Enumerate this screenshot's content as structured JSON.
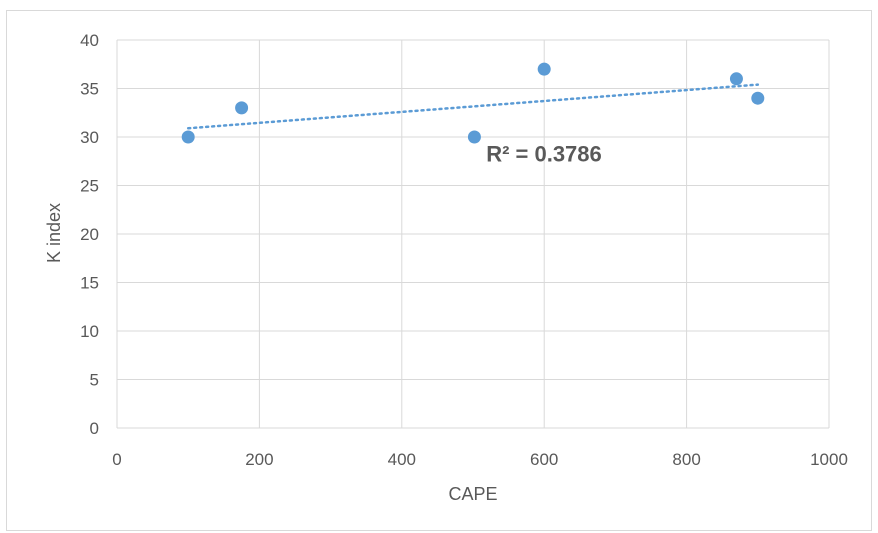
{
  "chart_data": {
    "type": "scatter",
    "title": "",
    "xlabel": "CAPE",
    "ylabel": "K index",
    "xlim": [
      0,
      1000
    ],
    "ylim": [
      0,
      40
    ],
    "x_ticks": [
      0,
      200,
      400,
      600,
      800,
      1000
    ],
    "y_ticks": [
      0,
      5,
      10,
      15,
      20,
      25,
      30,
      35,
      40
    ],
    "grid": true,
    "legend": "none",
    "series": [
      {
        "color": "#5b9bd5",
        "points": [
          {
            "x": 100,
            "y": 30
          },
          {
            "x": 175,
            "y": 33
          },
          {
            "x": 502,
            "y": 30
          },
          {
            "x": 600,
            "y": 37
          },
          {
            "x": 870,
            "y": 36
          },
          {
            "x": 900,
            "y": 34
          }
        ]
      }
    ],
    "trendline": {
      "type": "linear",
      "style": "dotted",
      "color": "#5b9bd5",
      "from": {
        "x": 100,
        "y": 30.9
      },
      "to": {
        "x": 900,
        "y": 35.4
      }
    },
    "annotations": [
      {
        "text": "R² = 0.3786",
        "x": 600,
        "y": 27.5
      }
    ]
  }
}
